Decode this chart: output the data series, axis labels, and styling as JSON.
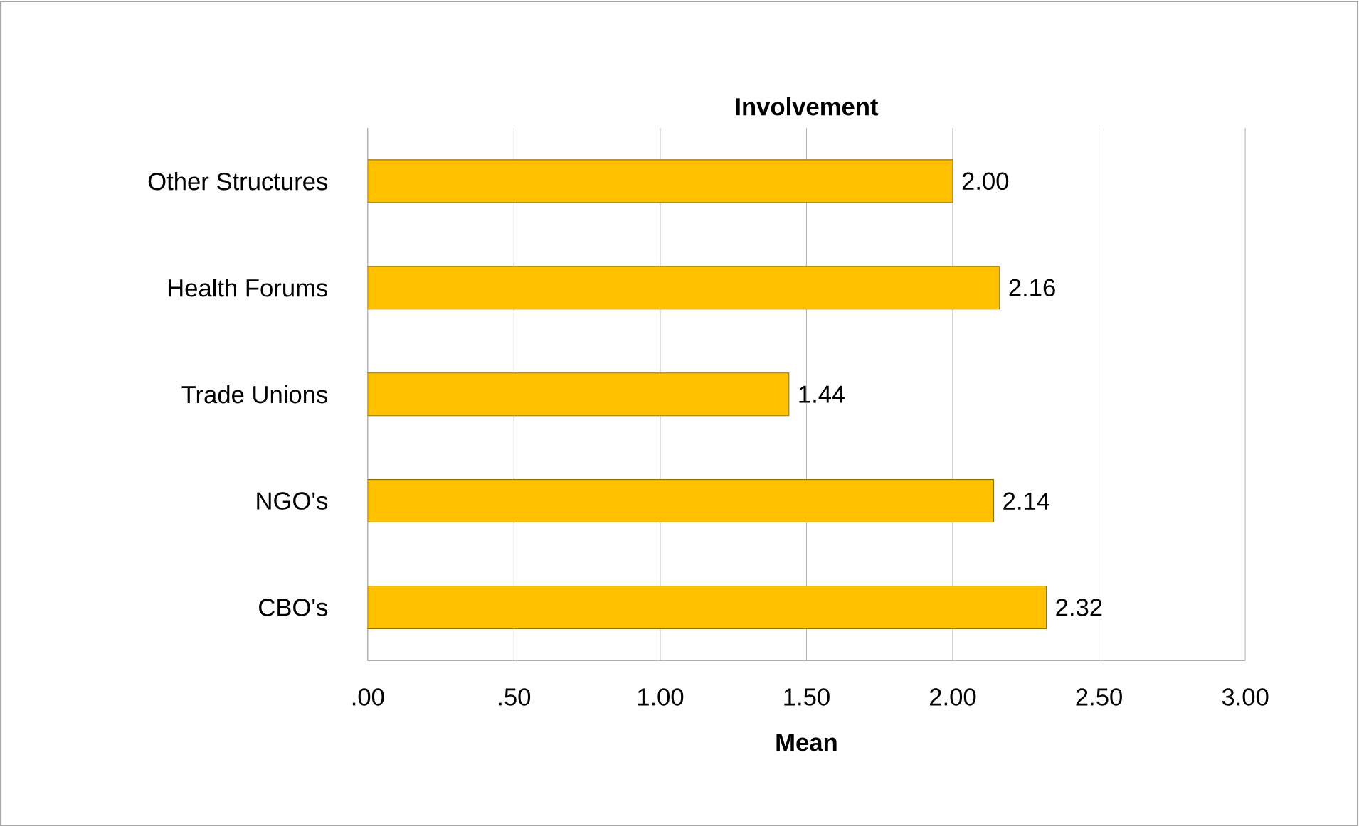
{
  "chart_data": {
    "type": "bar",
    "orientation": "horizontal",
    "title": "Involvement",
    "xlabel": "Mean",
    "categories": [
      "Other Structures",
      "Health Forums",
      "Trade Unions",
      "NGO's",
      "CBO's"
    ],
    "values": [
      2.0,
      2.16,
      1.44,
      2.14,
      2.32
    ],
    "value_labels": [
      "2.00",
      "2.16",
      "1.44",
      "2.14",
      "2.32"
    ],
    "color": "#ffc000",
    "xlim": [
      0,
      3
    ],
    "xticks": [
      {
        "value": 0,
        "label": ".00"
      },
      {
        "value": 0.5,
        "label": ".50"
      },
      {
        "value": 1,
        "label": "1.00"
      },
      {
        "value": 1.5,
        "label": "1.50"
      },
      {
        "value": 2,
        "label": "2.00"
      },
      {
        "value": 2.5,
        "label": "2.50"
      },
      {
        "value": 3,
        "label": "3.00"
      }
    ],
    "grid": "x"
  }
}
